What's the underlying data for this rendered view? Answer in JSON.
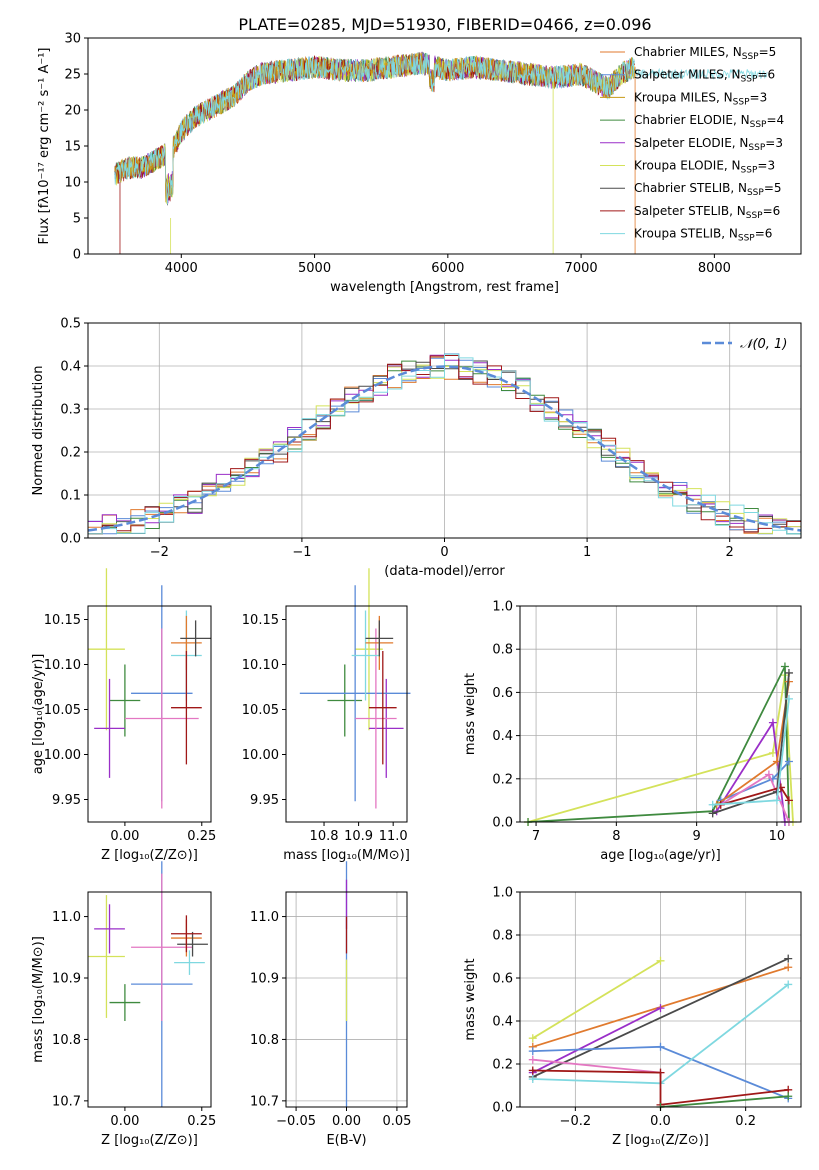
{
  "figure_title": "PLATE=0285, MJD=51930, FIBERID=0466, z=0.096",
  "chart_data": [
    {
      "type": "line",
      "id": "spectrum",
      "xlabel": "wavelength [Angstrom, rest frame]",
      "ylabel": "Flux [fλ10⁻¹⁷ erg cm⁻² s⁻¹ A⁻¹]",
      "xlim": [
        3300,
        8650
      ],
      "ylim": [
        0,
        30
      ],
      "xticks": [
        4000,
        5000,
        6000,
        7000,
        8000
      ],
      "yticks": [
        0,
        5,
        10,
        15,
        20,
        25,
        30
      ],
      "grid": false,
      "legend_position": "top-right",
      "continuum_knots": {
        "x": [
          3500,
          3600,
          3700,
          3800,
          3900,
          3950,
          4000,
          4100,
          4200,
          4300,
          4400,
          4500,
          4600,
          4800,
          5000,
          5200,
          5400,
          5600,
          5800,
          5900,
          6000,
          6200,
          6400,
          6600,
          6800,
          7000,
          7100,
          7200,
          7300,
          7400
        ],
        "y": [
          11,
          12,
          12,
          13,
          14,
          15,
          17,
          19,
          20,
          21,
          22,
          24,
          25,
          25.5,
          26,
          25.5,
          25.5,
          26,
          26.5,
          26,
          25.5,
          26,
          25.5,
          25,
          24.5,
          25,
          24,
          23,
          25,
          26
        ]
      },
      "series": [
        {
          "name": "Chabrier MILES, N_SSP=5",
          "color": "#e07a2e"
        },
        {
          "name": "Salpeter MILES, N_SSP=6",
          "color": "#5b8bd8"
        },
        {
          "name": "Kroupa MILES, N_SSP=3",
          "color": "#c79a14"
        },
        {
          "name": "Chabrier ELODIE, N_SSP=4",
          "color": "#3f8a3f"
        },
        {
          "name": "Salpeter ELODIE, N_SSP=3",
          "color": "#9a2fc8"
        },
        {
          "name": "Kroupa ELODIE, N_SSP=3",
          "color": "#d4e25a"
        },
        {
          "name": "Chabrier STELIB, N_SSP=5",
          "color": "#4a4a4a"
        },
        {
          "name": "Salpeter STELIB, N_SSP=6",
          "color": "#a01818"
        },
        {
          "name": "Kroupa STELIB, N_SSP=6",
          "color": "#7fd8e0"
        }
      ]
    },
    {
      "type": "line",
      "id": "residuals",
      "xlabel": "(data-model)/error",
      "ylabel": "Normed distribution",
      "xlim": [
        -2.5,
        2.5
      ],
      "ylim": [
        0,
        0.5
      ],
      "xticks": [
        -2,
        -1,
        0,
        1,
        2
      ],
      "yticks": [
        0.0,
        0.1,
        0.2,
        0.3,
        0.4,
        0.5
      ],
      "grid": true,
      "legend_position": "top-right",
      "legend_label": "𝒩(0, 1)",
      "normal_color": "#5b8bd8"
    },
    {
      "type": "scatter",
      "id": "age_vs_Z",
      "xlabel": "Z [log₁₀(Z/Z⊙)]",
      "ylabel": "age  [log₁₀(age/yr)]",
      "xlim": [
        -0.12,
        0.28
      ],
      "ylim": [
        9.925,
        10.165
      ],
      "xticks": [
        0.0,
        0.25
      ],
      "yticks": [
        9.95,
        10.0,
        10.05,
        10.1,
        10.15
      ],
      "grid": false,
      "points": [
        {
          "color": "#d4e25a",
          "x": -0.06,
          "xerr": 0.06,
          "y": 10.117,
          "yerr": 0.09
        },
        {
          "color": "#3f8a3f",
          "x": 0.0,
          "xerr": 0.05,
          "y": 10.06,
          "yerr": 0.04
        },
        {
          "color": "#9a2fc8",
          "x": -0.05,
          "xerr": 0.05,
          "y": 10.029,
          "yerr": 0.055
        },
        {
          "color": "#5b8bd8",
          "x": 0.12,
          "xerr": 0.1,
          "y": 10.068,
          "yerr": 0.12
        },
        {
          "color": "#e377c2",
          "x": 0.12,
          "xerr": 0.12,
          "y": 10.04,
          "yerr": 0.1
        },
        {
          "color": "#7fd8e0",
          "x": 0.2,
          "xerr": 0.05,
          "y": 10.11,
          "yerr": 0.05
        },
        {
          "color": "#e07a2e",
          "x": 0.2,
          "xerr": 0.05,
          "y": 10.124,
          "yerr": 0.03
        },
        {
          "color": "#4a4a4a",
          "x": 0.23,
          "xerr": 0.05,
          "y": 10.129,
          "yerr": 0.02
        },
        {
          "color": "#a01818",
          "x": 0.2,
          "xerr": 0.05,
          "y": 10.052,
          "yerr": 0.063
        }
      ]
    },
    {
      "type": "scatter",
      "id": "age_vs_mass",
      "xlabel": "mass [log₁₀(M/M⊙)]",
      "ylabel": "",
      "xlim": [
        10.69,
        11.04
      ],
      "ylim": [
        9.925,
        10.165
      ],
      "xticks": [
        10.8,
        10.9,
        11.0
      ],
      "yticks": [
        9.95,
        10.0,
        10.05,
        10.1,
        10.15
      ],
      "grid": false,
      "points": [
        {
          "color": "#d4e25a",
          "x": 10.93,
          "xerr": 0.04,
          "y": 10.117,
          "yerr": 0.09
        },
        {
          "color": "#3f8a3f",
          "x": 10.86,
          "xerr": 0.05,
          "y": 10.06,
          "yerr": 0.04
        },
        {
          "color": "#9a2fc8",
          "x": 10.98,
          "xerr": 0.05,
          "y": 10.029,
          "yerr": 0.055
        },
        {
          "color": "#5b8bd8",
          "x": 10.89,
          "xerr": 0.16,
          "y": 10.068,
          "yerr": 0.12
        },
        {
          "color": "#e377c2",
          "x": 10.95,
          "xerr": 0.06,
          "y": 10.04,
          "yerr": 0.1
        },
        {
          "color": "#7fd8e0",
          "x": 10.92,
          "xerr": 0.04,
          "y": 10.11,
          "yerr": 0.05
        },
        {
          "color": "#e07a2e",
          "x": 10.96,
          "xerr": 0.04,
          "y": 10.124,
          "yerr": 0.03
        },
        {
          "color": "#4a4a4a",
          "x": 10.96,
          "xerr": 0.04,
          "y": 10.129,
          "yerr": 0.02
        },
        {
          "color": "#a01818",
          "x": 10.97,
          "xerr": 0.04,
          "y": 10.052,
          "yerr": 0.063
        }
      ]
    },
    {
      "type": "line",
      "id": "mass_weight_vs_age",
      "xlabel": "age  [log₁₀(age/yr)]",
      "ylabel": "mass weight",
      "xlim": [
        6.8,
        10.3
      ],
      "ylim": [
        0,
        1
      ],
      "xticks": [
        7,
        8,
        9,
        10
      ],
      "yticks": [
        0.0,
        0.2,
        0.4,
        0.6,
        0.8,
        1.0
      ],
      "grid": true,
      "series": [
        {
          "color": "#d4e25a",
          "x": [
            6.9,
            9.95,
            10.1,
            10.2
          ],
          "y": [
            0.0,
            0.32,
            0.68,
            0.0
          ]
        },
        {
          "color": "#3f8a3f",
          "x": [
            6.9,
            9.2,
            10.1,
            10.15
          ],
          "y": [
            0.0,
            0.05,
            0.72,
            0.0
          ]
        },
        {
          "color": "#9a2fc8",
          "x": [
            9.25,
            9.95,
            10.1
          ],
          "y": [
            0.05,
            0.46,
            0.0
          ]
        },
        {
          "color": "#5b8bd8",
          "x": [
            9.3,
            9.95,
            10.15
          ],
          "y": [
            0.1,
            0.2,
            0.28
          ]
        },
        {
          "color": "#e377c2",
          "x": [
            9.3,
            9.9,
            10.15
          ],
          "y": [
            0.08,
            0.22,
            0.0
          ]
        },
        {
          "color": "#e07a2e",
          "x": [
            9.25,
            10.0,
            10.15
          ],
          "y": [
            0.08,
            0.28,
            0.65
          ]
        },
        {
          "color": "#4a4a4a",
          "x": [
            9.2,
            10.0,
            10.15
          ],
          "y": [
            0.04,
            0.14,
            0.69
          ]
        },
        {
          "color": "#a01818",
          "x": [
            9.3,
            10.05,
            10.15
          ],
          "y": [
            0.08,
            0.16,
            0.1
          ]
        },
        {
          "color": "#7fd8e0",
          "x": [
            9.2,
            10.0,
            10.15
          ],
          "y": [
            0.08,
            0.1,
            0.57
          ]
        }
      ]
    },
    {
      "type": "scatter",
      "id": "mass_vs_Z",
      "xlabel": "Z [log₁₀(Z/Z⊙)]",
      "ylabel": "mass [log₁₀(M/M⊙)]",
      "xlim": [
        -0.12,
        0.28
      ],
      "ylim": [
        10.69,
        11.04
      ],
      "xticks": [
        0.0,
        0.25
      ],
      "yticks": [
        10.7,
        10.8,
        10.9,
        11.0
      ],
      "grid": false,
      "points": [
        {
          "color": "#d4e25a",
          "x": -0.06,
          "xerr": 0.06,
          "y": 10.935,
          "yerr": 0.1
        },
        {
          "color": "#3f8a3f",
          "x": 0.0,
          "xerr": 0.05,
          "y": 10.86,
          "yerr": 0.03
        },
        {
          "color": "#9a2fc8",
          "x": -0.05,
          "xerr": 0.05,
          "y": 10.98,
          "yerr": 0.04
        },
        {
          "color": "#5b8bd8",
          "x": 0.12,
          "xerr": 0.1,
          "y": 10.89,
          "yerr": 0.2
        },
        {
          "color": "#e377c2",
          "x": 0.12,
          "xerr": 0.1,
          "y": 10.95,
          "yerr": 0.12
        },
        {
          "color": "#7fd8e0",
          "x": 0.21,
          "xerr": 0.05,
          "y": 10.925,
          "yerr": 0.02
        },
        {
          "color": "#e07a2e",
          "x": 0.2,
          "xerr": 0.05,
          "y": 10.965,
          "yerr": 0.03
        },
        {
          "color": "#4a4a4a",
          "x": 0.22,
          "xerr": 0.05,
          "y": 10.955,
          "yerr": 0.02
        },
        {
          "color": "#a01818",
          "x": 0.2,
          "xerr": 0.05,
          "y": 10.972,
          "yerr": 0.03
        }
      ]
    },
    {
      "type": "scatter",
      "id": "mass_vs_ebv",
      "xlabel": "E(B-V)",
      "ylabel": "",
      "xlim": [
        -0.06,
        0.06
      ],
      "ylim": [
        10.69,
        11.04
      ],
      "xticks": [
        -0.05,
        0.0,
        0.05
      ],
      "yticks": [
        10.7,
        10.8,
        10.9,
        11.0
      ],
      "grid": true,
      "points": [
        {
          "color": "#5b8bd8",
          "x": 0.0,
          "y": 10.89,
          "yerr": 0.2
        },
        {
          "color": "#9a2fc8",
          "x": 0.0,
          "y": 11.02,
          "yerr": 0.04
        },
        {
          "color": "#d4e25a",
          "x": 0.0,
          "y": 10.88,
          "yerr": 0.05
        },
        {
          "color": "#a01818",
          "x": 0.0,
          "y": 10.97,
          "yerr": 0.03
        }
      ]
    },
    {
      "type": "line",
      "id": "mass_weight_vs_Z",
      "xlabel": "Z [log₁₀(Z/Z⊙)]",
      "ylabel": "mass weight",
      "xlim": [
        -0.33,
        0.33
      ],
      "ylim": [
        0,
        1
      ],
      "xticks": [
        -0.2,
        0.0,
        0.2
      ],
      "yticks": [
        0.0,
        0.2,
        0.4,
        0.6,
        0.8,
        1.0
      ],
      "grid": true,
      "series": [
        {
          "color": "#d4e25a",
          "x": [
            -0.3,
            0.0
          ],
          "y": [
            0.32,
            0.68
          ]
        },
        {
          "color": "#e07a2e",
          "x": [
            -0.3,
            0.3
          ],
          "y": [
            0.28,
            0.65
          ]
        },
        {
          "color": "#4a4a4a",
          "x": [
            -0.3,
            0.3
          ],
          "y": [
            0.14,
            0.69
          ]
        },
        {
          "color": "#9a2fc8",
          "x": [
            -0.3,
            0.0
          ],
          "y": [
            0.16,
            0.46
          ]
        },
        {
          "color": "#5b8bd8",
          "x": [
            -0.3,
            0.0,
            0.3
          ],
          "y": [
            0.26,
            0.28,
            0.04
          ]
        },
        {
          "color": "#e377c2",
          "x": [
            -0.3,
            0.0
          ],
          "y": [
            0.22,
            0.16
          ]
        },
        {
          "color": "#7fd8e0",
          "x": [
            -0.3,
            0.0,
            0.3
          ],
          "y": [
            0.13,
            0.11,
            0.57
          ]
        },
        {
          "color": "#a01818",
          "x": [
            -0.3,
            0.0,
            0.0,
            0.3
          ],
          "y": [
            0.17,
            0.16,
            0.01,
            0.08
          ]
        },
        {
          "color": "#3f8a3f",
          "x": [
            0.0,
            0.3
          ],
          "y": [
            0.0,
            0.05
          ]
        }
      ]
    }
  ]
}
